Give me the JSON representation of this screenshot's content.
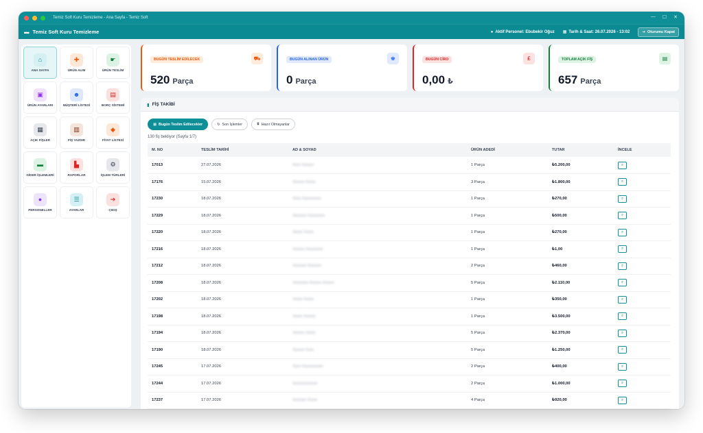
{
  "window": {
    "title": "Temiz Soft Kuru Temizleme - Ana Sayfa - Temiz Soft",
    "controls": [
      "—",
      "☐",
      "✕"
    ]
  },
  "appbar": {
    "brand": "Temiz Soft Kuru Temizleme",
    "personnel": "Aktif Personel: Ebubekir Oğuz",
    "datetime": "Tarih & Saat: 26.07.2026 - 13:02",
    "logout": "Oturumu Kapat"
  },
  "sidebar": {
    "items": [
      {
        "label": "ANA SAYFA",
        "icon": "home-icon",
        "glyph": "⌂",
        "color": "#0e8e97",
        "bg": "#d5f0f2",
        "active": true
      },
      {
        "label": "ÜRÜN ALIM",
        "icon": "plus-circle-icon",
        "glyph": "✚",
        "color": "#ea580c",
        "bg": "#fde7d6"
      },
      {
        "label": "ÜRÜN TESLİM",
        "icon": "handshake-icon",
        "glyph": "☛",
        "color": "#15803d",
        "bg": "#dcf3e3"
      },
      {
        "label": "ÜRÜN AYARLARI",
        "icon": "box-icon",
        "glyph": "▣",
        "color": "#9333ea",
        "bg": "#f0e2fb"
      },
      {
        "label": "MÜŞTERİ LİSTESİ",
        "icon": "users-icon",
        "glyph": "☻",
        "color": "#2563eb",
        "bg": "#dde8fb"
      },
      {
        "label": "BORÇ SİSTEMİ",
        "icon": "wallet-icon",
        "glyph": "▤",
        "color": "#dc2626",
        "bg": "#fbe0e0"
      },
      {
        "label": "AÇIK FİŞLER",
        "icon": "file-icon",
        "glyph": "▦",
        "color": "#374151",
        "bg": "#e5e7eb"
      },
      {
        "label": "FİŞ YAZDIR",
        "icon": "barcode-icon",
        "glyph": "▥",
        "color": "#7c2d12",
        "bg": "#f3e4dc"
      },
      {
        "label": "FİYAT LİSTESİ",
        "icon": "tag-icon",
        "glyph": "◆",
        "color": "#ea580c",
        "bg": "#fde7d6"
      },
      {
        "label": "GİDER İŞLEMLERİ",
        "icon": "money-icon",
        "glyph": "▬",
        "color": "#15803d",
        "bg": "#dcf3e3"
      },
      {
        "label": "RAPORLAR",
        "icon": "chart-icon",
        "glyph": "▙",
        "color": "#dc2626",
        "bg": "#fbe0e0"
      },
      {
        "label": "İŞLEM TÜRLERİ",
        "icon": "cogs-icon",
        "glyph": "⚙",
        "color": "#374151",
        "bg": "#e5e7eb"
      },
      {
        "label": "PERSONELLER",
        "icon": "person-icon",
        "glyph": "●",
        "color": "#7c3aed",
        "bg": "#ede4fc"
      },
      {
        "label": "AYARLAR",
        "icon": "sliders-icon",
        "glyph": "☰",
        "color": "#0e8e97",
        "bg": "#d5f0f2"
      },
      {
        "label": "ÇIKIŞ",
        "icon": "logout-icon",
        "glyph": "➔",
        "color": "#dc2626",
        "bg": "#fbe0e0"
      }
    ]
  },
  "cards": [
    {
      "label": "BUGÜN TESLİM EDİLECEK",
      "value": "520",
      "unit": "Parça",
      "color": "#ea580c",
      "label_bg": "#fdebdc",
      "icon": "truck-icon",
      "glyph": "⛟"
    },
    {
      "label": "BUGÜN ALINAN ÜRÜN",
      "value": "0",
      "unit": "Parça",
      "color": "#2563eb",
      "label_bg": "#e0eafc",
      "icon": "shirt-icon",
      "glyph": "♚"
    },
    {
      "label": "BUGÜN CİRO",
      "value": "0,00",
      "unit": "₺",
      "color": "#dc2626",
      "label_bg": "#fce1e1",
      "icon": "lira-icon",
      "glyph": "₤"
    },
    {
      "label": "TOPLAM AÇIK FİŞ",
      "value": "657",
      "unit": "Parça",
      "color": "#15803d",
      "label_bg": "#dff3e5",
      "icon": "receipt-icon",
      "glyph": "▤"
    }
  ],
  "panel": {
    "title": "FİŞ TAKİBİ",
    "tabs": [
      {
        "label": "Bugün Teslim Edilecekler",
        "active": true,
        "glyph": "▦"
      },
      {
        "label": "Son İşlemler",
        "active": false,
        "glyph": "↻"
      },
      {
        "label": "Hazır Olmayanlar",
        "active": false,
        "glyph": "⧗"
      }
    ],
    "count_text": "130 fiş bekliyor (Sayfa 1/7)",
    "columns": [
      "M. NO",
      "TESLİM TARİHİ",
      "AD & SOYAD",
      "ÜRÜN ADEDİ",
      "TUTAR",
      "İNCELE"
    ],
    "rows": [
      {
        "no": "17013",
        "date": "27.07.2026",
        "name": "Xxxx Xxxxxx",
        "qty": "1 Parça",
        "total": "₺5.200,00"
      },
      {
        "no": "17176",
        "date": "15.07.2026",
        "name": "Xxxxxx Xxxxx",
        "qty": "3 Parça",
        "total": "₺1.800,00"
      },
      {
        "no": "17230",
        "date": "18.07.2026",
        "name": "Xxxx Xxxxxxxxxx",
        "qty": "1 Parça",
        "total": "₺270,00"
      },
      {
        "no": "17229",
        "date": "18.07.2026",
        "name": "Xxxxxxx Xxxxxxxxx",
        "qty": "1 Parça",
        "total": "₺500,00"
      },
      {
        "no": "17220",
        "date": "18.07.2026",
        "name": "Xxxxx Xxxxx",
        "qty": "1 Parça",
        "total": "₺270,00"
      },
      {
        "no": "17216",
        "date": "18.07.2026",
        "name": "Xxxxxx Xxxxxxxxx",
        "qty": "1 Parça",
        "total": "₺1,00"
      },
      {
        "no": "17212",
        "date": "18.07.2026",
        "name": "Xxxxxxx Xxxxxxx",
        "qty": "2 Parça",
        "total": "₺460,00"
      },
      {
        "no": "17208",
        "date": "18.07.2026",
        "name": "Xxxxxxxx Xxxxxx Xxxxxx",
        "qty": "5 Parça",
        "total": "₺2.110,00"
      },
      {
        "no": "17202",
        "date": "18.07.2026",
        "name": "Xxxxx Xxxxx",
        "qty": "1 Parça",
        "total": "₺350,00"
      },
      {
        "no": "17198",
        "date": "18.07.2026",
        "name": "Xxxxx Xxxxxx",
        "qty": "1 Parça",
        "total": "₺3.500,00"
      },
      {
        "no": "17194",
        "date": "18.07.2026",
        "name": "Xxxxxx Xxxxx",
        "qty": "5 Parça",
        "total": "₺2.370,00"
      },
      {
        "no": "17190",
        "date": "18.07.2026",
        "name": "Xxxxxx Xxxx",
        "qty": "5 Parça",
        "total": "₺1.250,00"
      },
      {
        "no": "17245",
        "date": "17.07.2026",
        "name": "Xxxx Xxxxxxxxxxx",
        "qty": "2 Parça",
        "total": "₺400,00"
      },
      {
        "no": "17244",
        "date": "17.07.2026",
        "name": "Xxxxxxxxxxxxx",
        "qty": "2 Parça",
        "total": "₺1.000,00"
      },
      {
        "no": "17237",
        "date": "17.07.2026",
        "name": "Xxxxxxx Xxxxx",
        "qty": "4 Parça",
        "total": "₺920,00"
      }
    ]
  }
}
